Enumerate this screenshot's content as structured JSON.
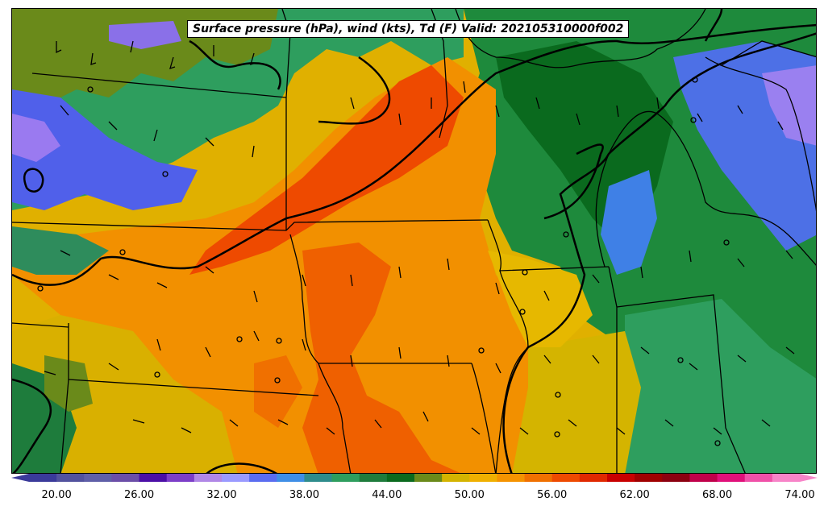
{
  "title": "Surface pressure (hPa), wind (kts), Td (F) Valid: 202105310000f002",
  "colorbar": {
    "ticks": [
      "20.00",
      "26.00",
      "32.00",
      "38.00",
      "44.00",
      "50.00",
      "56.00",
      "62.00",
      "68.00",
      "74.00"
    ],
    "colors": [
      "#3a3a9a",
      "#52529e",
      "#5f5fa8",
      "#6b4ea8",
      "#4b0fa6",
      "#7c3ec8",
      "#b087e6",
      "#9a9aff",
      "#5a6cf0",
      "#3f8ee6",
      "#2e8c8c",
      "#2e9e5e",
      "#1e7c3c",
      "#0a6a1e",
      "#6a8a1a",
      "#d4b400",
      "#f0b000",
      "#f59300",
      "#f07000",
      "#ee4a00",
      "#e02800",
      "#c80000",
      "#a00000",
      "#8c0010",
      "#c0004a",
      "#e0107a",
      "#f050a8",
      "#f784c8"
    ]
  },
  "map": {
    "background_color": "#e0a800",
    "land_colors": {
      "dry": "#f08000",
      "very_dry": "#ee4a00",
      "mid": "#d4b400",
      "moist": "#2e9e5e",
      "very_moist": "#0a6a1e",
      "olive": "#6a8a1a",
      "blue": "#5a6cf0",
      "purple": "#9a7af0"
    }
  }
}
